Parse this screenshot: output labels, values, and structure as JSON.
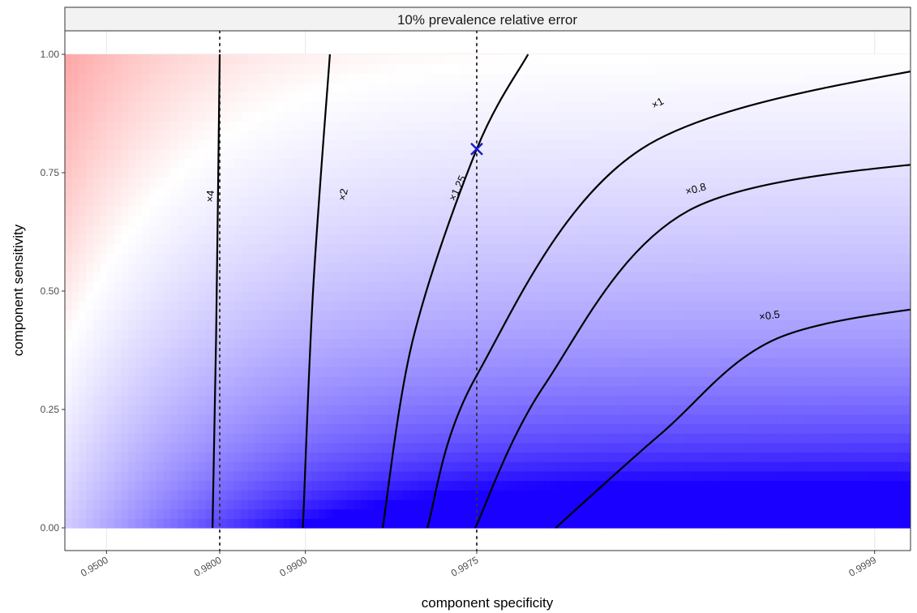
{
  "chart_data": {
    "type": "heatmap",
    "title": "10% prevalence relative error",
    "xlabel": "component specificity",
    "ylabel": "component sensitivity",
    "x_scale": "log(1 - specificity)",
    "x_ticks": [
      "0.9500",
      "0.9800",
      "0.9900",
      "0.9975",
      "0.9999"
    ],
    "y_ticks": [
      "0.00",
      "0.25",
      "0.50",
      "0.75",
      "1.00"
    ],
    "xlim": [
      0.94,
      0.99995
    ],
    "ylim": [
      0,
      1
    ],
    "reference_lines_x": [
      0.98,
      0.9975
    ],
    "highlight_point": {
      "x": 0.9975,
      "y": 0.8
    },
    "color_scale": {
      "low": "#1a00ff",
      "mid": "#ffffff",
      "high": "#ff0000"
    },
    "contours": [
      {
        "label": "×4",
        "points": [
          [
            0.9788,
            0.0
          ],
          [
            0.9794,
            0.4
          ],
          [
            0.98,
            1.0
          ]
        ]
      },
      {
        "label": "×2",
        "points": [
          [
            0.9898,
            0.0
          ],
          [
            0.9906,
            0.5
          ],
          [
            0.9918,
            1.0
          ]
        ]
      },
      {
        "label": "×1.25",
        "points": [
          [
            0.99465,
            0.0
          ],
          [
            0.99582,
            0.4
          ],
          [
            0.9975,
            0.8
          ],
          [
            0.99835,
            1.0
          ]
        ]
      },
      {
        "label": "×1",
        "points": [
          [
            0.99627,
            0.0
          ],
          [
            0.99749,
            0.32
          ],
          [
            0.99934,
            0.8
          ],
          [
            0.99995,
            0.986
          ]
        ]
      },
      {
        "label": "×0.8",
        "points": [
          [
            0.99747,
            0.0
          ],
          [
            0.99855,
            0.3
          ],
          [
            0.99955,
            0.67
          ],
          [
            0.99995,
            0.78
          ]
        ]
      },
      {
        "label": "×0.5",
        "points": [
          [
            0.99868,
            0.0
          ],
          [
            0.99944,
            0.2
          ],
          [
            0.99978,
            0.4
          ],
          [
            0.99995,
            0.476
          ]
        ]
      }
    ]
  }
}
